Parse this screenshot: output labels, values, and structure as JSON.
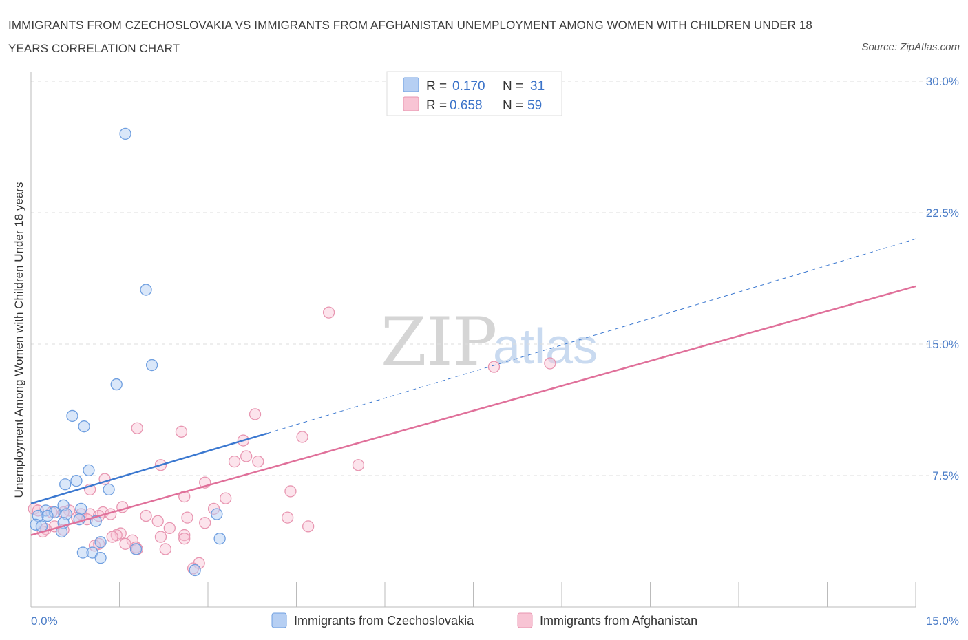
{
  "title": "IMMIGRANTS FROM CZECHOSLOVAKIA VS IMMIGRANTS FROM AFGHANISTAN UNEMPLOYMENT AMONG WOMEN WITH CHILDREN UNDER 18 YEARS CORRELATION CHART",
  "source": "Source: ZipAtlas.com",
  "watermark": {
    "zip": "ZIP",
    "atlas": "atlas"
  },
  "colors": {
    "blue_fill": "#b6cff3",
    "blue_stroke": "#6f9fe0",
    "blue_line": "#3b78d0",
    "pink_fill": "#f8c4d4",
    "pink_stroke": "#e896b1",
    "pink_line": "#e0709a",
    "grid": "#dddddd",
    "axis_text": "#4a7cc7"
  },
  "stats": [
    {
      "r_label": "R =",
      "r_value": "0.170",
      "n_label": "N =",
      "n_value": "31"
    },
    {
      "r_label": "R =",
      "r_value": "0.658",
      "n_label": "N =",
      "n_value": "59"
    }
  ],
  "chart_data": {
    "type": "scatter",
    "title": "IMMIGRANTS FROM CZECHOSLOVAKIA VS IMMIGRANTS FROM AFGHANISTAN UNEMPLOYMENT AMONG WOMEN WITH CHILDREN UNDER 18 YEARS CORRELATION CHART",
    "xlabel": "",
    "ylabel": "Unemployment Among Women with Children Under 18 years",
    "xlim": [
      0,
      15
    ],
    "ylim": [
      0,
      30
    ],
    "x_tick_labels": [
      "0.0%",
      "15.0%"
    ],
    "x_tick_values": [
      0,
      15
    ],
    "y_tick_labels": [
      "30.0%",
      "22.5%",
      "15.0%",
      "7.5%"
    ],
    "y_tick_values": [
      30,
      22.5,
      15,
      7.5
    ],
    "grid": true,
    "legend_position": "bottom",
    "series": [
      {
        "name": "Immigrants from Czechoslovakia",
        "color": "blue",
        "r": 0.17,
        "n": 31,
        "trend": {
          "x": [
            0,
            4.0
          ],
          "y": [
            5.9,
            9.9
          ],
          "extended_x": [
            4.0,
            15.0
          ],
          "extended_y": [
            9.9,
            21.0
          ]
        },
        "points": [
          [
            1.6,
            27.0
          ],
          [
            1.95,
            18.1
          ],
          [
            2.05,
            13.8
          ],
          [
            1.45,
            12.7
          ],
          [
            0.7,
            10.9
          ],
          [
            0.9,
            10.3
          ],
          [
            0.98,
            7.8
          ],
          [
            0.77,
            7.2
          ],
          [
            0.58,
            7.0
          ],
          [
            1.32,
            6.7
          ],
          [
            0.55,
            5.8
          ],
          [
            0.85,
            5.6
          ],
          [
            0.25,
            5.5
          ],
          [
            0.4,
            5.4
          ],
          [
            0.6,
            5.3
          ],
          [
            3.15,
            5.3
          ],
          [
            0.12,
            5.2
          ],
          [
            0.28,
            5.2
          ],
          [
            0.82,
            5.0
          ],
          [
            1.1,
            4.9
          ],
          [
            0.55,
            4.8
          ],
          [
            0.08,
            4.7
          ],
          [
            0.18,
            4.6
          ],
          [
            0.52,
            4.3
          ],
          [
            3.2,
            3.9
          ],
          [
            1.18,
            3.7
          ],
          [
            1.78,
            3.3
          ],
          [
            0.88,
            3.1
          ],
          [
            1.04,
            3.1
          ],
          [
            1.18,
            2.8
          ],
          [
            2.78,
            2.1
          ]
        ]
      },
      {
        "name": "Immigrants from Afghanistan",
        "color": "pink",
        "r": 0.658,
        "n": 59,
        "trend": {
          "x": [
            0,
            15.0
          ],
          "y": [
            4.1,
            18.3
          ]
        },
        "points": [
          [
            5.05,
            16.8
          ],
          [
            8.8,
            13.9
          ],
          [
            7.85,
            13.7
          ],
          [
            3.8,
            11.0
          ],
          [
            1.8,
            10.2
          ],
          [
            2.55,
            10.0
          ],
          [
            4.6,
            9.7
          ],
          [
            3.6,
            9.5
          ],
          [
            3.65,
            8.6
          ],
          [
            3.85,
            8.3
          ],
          [
            3.45,
            8.3
          ],
          [
            2.2,
            8.1
          ],
          [
            5.55,
            8.1
          ],
          [
            1.25,
            7.3
          ],
          [
            2.95,
            7.1
          ],
          [
            1.0,
            6.7
          ],
          [
            4.4,
            6.6
          ],
          [
            2.6,
            6.3
          ],
          [
            3.3,
            6.2
          ],
          [
            1.55,
            5.7
          ],
          [
            3.1,
            5.6
          ],
          [
            0.05,
            5.6
          ],
          [
            0.12,
            5.5
          ],
          [
            0.65,
            5.5
          ],
          [
            0.35,
            5.4
          ],
          [
            1.22,
            5.4
          ],
          [
            0.55,
            5.4
          ],
          [
            0.85,
            5.3
          ],
          [
            1.35,
            5.3
          ],
          [
            1.0,
            5.3
          ],
          [
            1.15,
            5.2
          ],
          [
            1.95,
            5.2
          ],
          [
            0.78,
            5.1
          ],
          [
            2.65,
            5.1
          ],
          [
            4.35,
            5.1
          ],
          [
            0.95,
            5.0
          ],
          [
            2.15,
            4.9
          ],
          [
            2.95,
            4.8
          ],
          [
            0.4,
            4.6
          ],
          [
            2.35,
            4.5
          ],
          [
            0.25,
            4.45
          ],
          [
            4.7,
            4.6
          ],
          [
            0.55,
            4.4
          ],
          [
            0.2,
            4.3
          ],
          [
            1.52,
            4.2
          ],
          [
            1.45,
            4.1
          ],
          [
            1.38,
            4.0
          ],
          [
            2.2,
            4.0
          ],
          [
            1.72,
            3.8
          ],
          [
            1.6,
            3.6
          ],
          [
            1.15,
            3.6
          ],
          [
            1.08,
            3.5
          ],
          [
            1.78,
            3.4
          ],
          [
            2.28,
            3.3
          ],
          [
            2.6,
            4.1
          ],
          [
            2.6,
            3.9
          ],
          [
            1.8,
            3.3
          ],
          [
            2.85,
            2.5
          ],
          [
            2.75,
            2.2
          ]
        ]
      }
    ]
  }
}
